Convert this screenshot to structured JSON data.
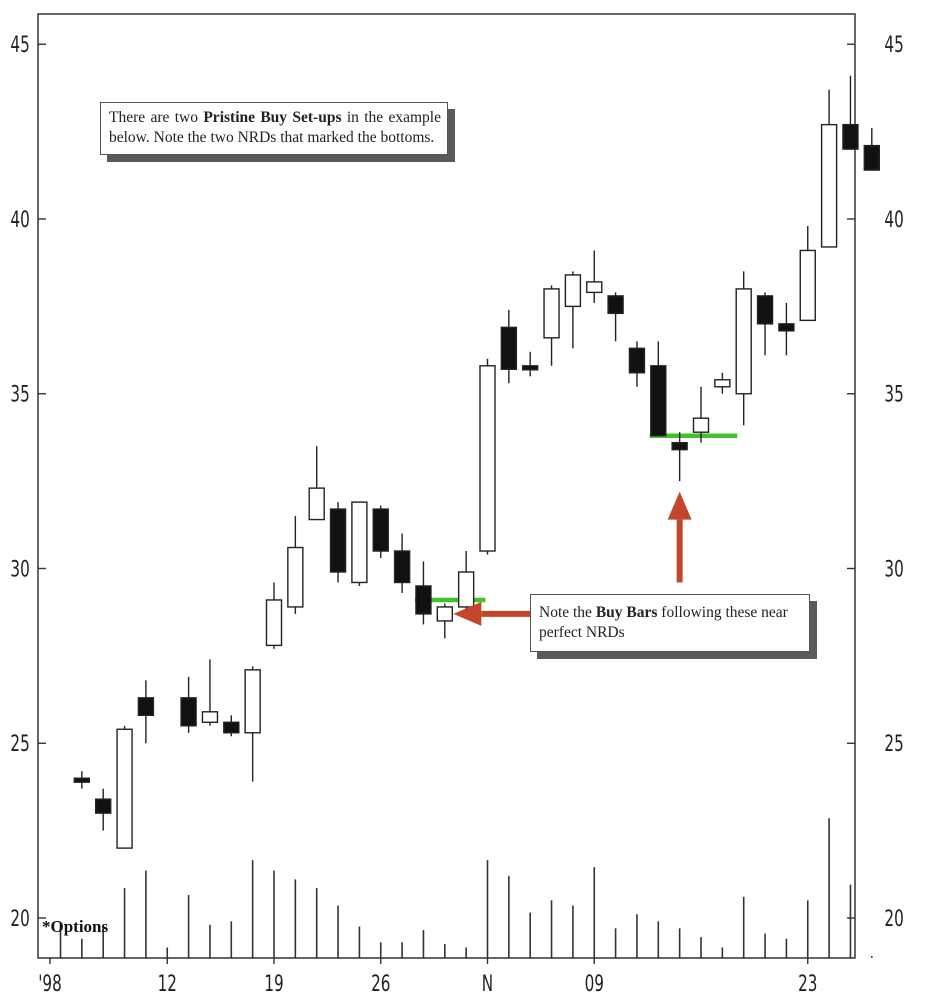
{
  "chart_data": {
    "type": "candlestick",
    "ylim": [
      19.5,
      46
    ],
    "y_ticks": [
      20,
      25,
      30,
      35,
      40,
      45
    ],
    "x_tick_labels": [
      {
        "label": "'98",
        "at": 0
      },
      {
        "label": "12",
        "at": 5
      },
      {
        "label": "19",
        "at": 10
      },
      {
        "label": "26",
        "at": 15
      },
      {
        "label": "N",
        "at": 20
      },
      {
        "label": "09",
        "at": 25
      },
      {
        "label": "23",
        "at": 35
      }
    ],
    "candles": [
      {
        "i": 1,
        "open": 24.0,
        "high": 24.2,
        "low": 23.7,
        "close": 23.9
      },
      {
        "i": 2,
        "open": 23.4,
        "high": 23.7,
        "low": 22.5,
        "close": 23.0
      },
      {
        "i": 3,
        "open": 22.0,
        "high": 25.5,
        "low": 22.0,
        "close": 25.4
      },
      {
        "i": 4,
        "open": 26.3,
        "high": 26.8,
        "low": 25.0,
        "close": 25.8
      },
      {
        "i": 6,
        "open": 26.3,
        "high": 26.9,
        "low": 25.3,
        "close": 25.5
      },
      {
        "i": 7,
        "open": 25.6,
        "high": 27.4,
        "low": 25.5,
        "close": 25.9
      },
      {
        "i": 8,
        "open": 25.6,
        "high": 25.8,
        "low": 25.2,
        "close": 25.3
      },
      {
        "i": 9,
        "open": 25.3,
        "high": 27.2,
        "low": 23.9,
        "close": 27.1
      },
      {
        "i": 10,
        "open": 27.8,
        "high": 29.6,
        "low": 27.7,
        "close": 29.1
      },
      {
        "i": 11,
        "open": 28.9,
        "high": 31.5,
        "low": 28.7,
        "close": 30.6
      },
      {
        "i": 12,
        "open": 31.4,
        "high": 33.5,
        "low": 31.4,
        "close": 32.3
      },
      {
        "i": 13,
        "open": 31.7,
        "high": 31.9,
        "low": 29.6,
        "close": 29.9
      },
      {
        "i": 14,
        "open": 29.6,
        "high": 31.9,
        "low": 29.5,
        "close": 31.9
      },
      {
        "i": 15,
        "open": 31.7,
        "high": 31.8,
        "low": 30.3,
        "close": 30.5
      },
      {
        "i": 16,
        "open": 30.5,
        "high": 31.0,
        "low": 29.3,
        "close": 29.6
      },
      {
        "i": 17,
        "open": 29.5,
        "high": 30.2,
        "low": 28.4,
        "close": 28.7
      },
      {
        "i": 18,
        "open": 28.5,
        "high": 29.0,
        "low": 28.0,
        "close": 28.9
      },
      {
        "i": 19,
        "open": 28.9,
        "high": 30.5,
        "low": 28.8,
        "close": 29.9
      },
      {
        "i": 20,
        "open": 30.5,
        "high": 36.0,
        "low": 30.4,
        "close": 35.8
      },
      {
        "i": 21,
        "open": 36.9,
        "high": 37.4,
        "low": 35.3,
        "close": 35.7
      },
      {
        "i": 22,
        "open": 35.8,
        "high": 36.2,
        "low": 35.5,
        "close": 35.7
      },
      {
        "i": 23,
        "open": 36.6,
        "high": 38.1,
        "low": 35.8,
        "close": 38.0
      },
      {
        "i": 24,
        "open": 37.5,
        "high": 38.5,
        "low": 36.3,
        "close": 38.4
      },
      {
        "i": 25,
        "open": 37.9,
        "high": 39.1,
        "low": 37.6,
        "close": 38.2
      },
      {
        "i": 26,
        "open": 37.8,
        "high": 37.9,
        "low": 36.5,
        "close": 37.3
      },
      {
        "i": 27,
        "open": 36.3,
        "high": 36.5,
        "low": 35.2,
        "close": 35.6
      },
      {
        "i": 28,
        "open": 35.8,
        "high": 36.5,
        "low": 33.8,
        "close": 33.8
      },
      {
        "i": 29,
        "open": 33.6,
        "high": 33.9,
        "low": 32.5,
        "close": 33.4
      },
      {
        "i": 30,
        "open": 33.9,
        "high": 35.2,
        "low": 33.6,
        "close": 34.3
      },
      {
        "i": 31,
        "open": 35.2,
        "high": 35.6,
        "low": 35.0,
        "close": 35.4
      },
      {
        "i": 32,
        "open": 35.0,
        "high": 38.5,
        "low": 34.1,
        "close": 38.0
      },
      {
        "i": 33,
        "open": 37.8,
        "high": 37.9,
        "low": 36.1,
        "close": 37.0
      },
      {
        "i": 34,
        "open": 37.0,
        "high": 37.6,
        "low": 36.1,
        "close": 36.8
      },
      {
        "i": 35,
        "open": 37.1,
        "high": 39.8,
        "low": 37.1,
        "close": 39.1
      },
      {
        "i": 36,
        "open": 39.2,
        "high": 43.7,
        "low": 39.2,
        "close": 42.7
      },
      {
        "i": 37,
        "open": 42.7,
        "high": 44.1,
        "low": 42.0,
        "close": 42.0
      },
      {
        "i": 38,
        "open": 42.1,
        "high": 42.6,
        "low": 41.4,
        "close": 41.4
      }
    ],
    "volume_bars": [
      {
        "i": 0,
        "v": 1.0
      },
      {
        "i": 1,
        "v": 0.55
      },
      {
        "i": 2,
        "v": 0.95
      },
      {
        "i": 3,
        "v": 2.0
      },
      {
        "i": 4,
        "v": 2.5
      },
      {
        "i": 5,
        "v": 0.3
      },
      {
        "i": 6,
        "v": 1.8
      },
      {
        "i": 7,
        "v": 0.95
      },
      {
        "i": 8,
        "v": 1.05
      },
      {
        "i": 9,
        "v": 2.8
      },
      {
        "i": 10,
        "v": 2.5
      },
      {
        "i": 11,
        "v": 2.25
      },
      {
        "i": 12,
        "v": 2.0
      },
      {
        "i": 13,
        "v": 1.5
      },
      {
        "i": 14,
        "v": 0.9
      },
      {
        "i": 15,
        "v": 0.45
      },
      {
        "i": 16,
        "v": 0.45
      },
      {
        "i": 17,
        "v": 0.8
      },
      {
        "i": 18,
        "v": 0.4
      },
      {
        "i": 19,
        "v": 0.3
      },
      {
        "i": 20,
        "v": 2.8
      },
      {
        "i": 21,
        "v": 2.35
      },
      {
        "i": 22,
        "v": 1.3
      },
      {
        "i": 23,
        "v": 1.65
      },
      {
        "i": 24,
        "v": 1.5
      },
      {
        "i": 25,
        "v": 2.6
      },
      {
        "i": 26,
        "v": 0.85
      },
      {
        "i": 27,
        "v": 1.25
      },
      {
        "i": 28,
        "v": 1.05
      },
      {
        "i": 29,
        "v": 0.85
      },
      {
        "i": 30,
        "v": 0.6
      },
      {
        "i": 31,
        "v": 0.3
      },
      {
        "i": 32,
        "v": 1.75
      },
      {
        "i": 33,
        "v": 0.7
      },
      {
        "i": 34,
        "v": 0.55
      },
      {
        "i": 35,
        "v": 1.65
      },
      {
        "i": 36,
        "v": 4.0
      },
      {
        "i": 37,
        "v": 2.1
      },
      {
        "i": 38,
        "v": 0.05
      }
    ],
    "nrd_lines": [
      {
        "price": 29.1,
        "from_i": 16.6,
        "to_i": 19.9
      },
      {
        "price": 33.8,
        "from_i": 27.6,
        "to_i": 31.7
      }
    ],
    "arrows": [
      {
        "from_i": 27.0,
        "from_price": 28.7,
        "to_i": 18.4,
        "to_price": 28.7
      },
      {
        "from_i": 29.0,
        "from_price": 29.6,
        "to_i": 29.0,
        "to_price": 32.2
      }
    ],
    "annotations": {
      "note1_prefix": "There are two ",
      "note1_bold": "Pristine Buy Set-ups",
      "note1_suffix": " in the example below. Note the two NRDs that marked the bottoms.",
      "note2_prefix": "Note the ",
      "note2_bold": "Buy Bars",
      "note2_suffix": " following these near perfect NRDs",
      "options_label": "*Options"
    },
    "colors": {
      "up_body": "#ffffff",
      "down_body": "#111111",
      "nrd_line": "#41c12b",
      "arrow": "#c4462a"
    }
  }
}
